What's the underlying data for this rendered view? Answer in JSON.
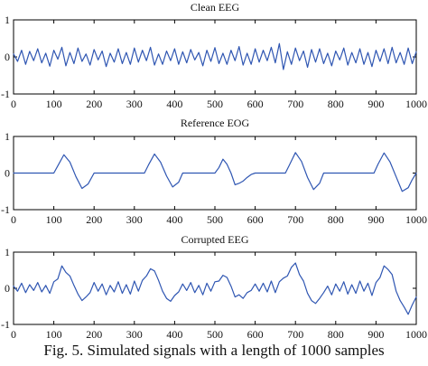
{
  "caption": "Fig. 5. Simulated signals with a length of 1000 samples",
  "colors": {
    "line": "#2f56b2",
    "axis": "#000000",
    "text": "#111111"
  },
  "chart_data": [
    {
      "type": "line",
      "title": "Clean EEG",
      "xlim": [
        0,
        1000
      ],
      "ylim": [
        -1,
        1
      ],
      "xticks": [
        0,
        100,
        200,
        300,
        400,
        500,
        600,
        700,
        800,
        900,
        1000
      ],
      "yticks": [
        -1,
        0,
        1
      ],
      "grid": false,
      "series": [
        {
          "x": [
            0,
            10,
            20,
            30,
            40,
            50,
            60,
            70,
            80,
            90,
            100,
            110,
            120,
            130,
            140,
            150,
            160,
            170,
            180,
            190,
            200,
            210,
            220,
            230,
            240,
            250,
            260,
            270,
            280,
            290,
            300,
            310,
            320,
            330,
            340,
            350,
            360,
            370,
            380,
            390,
            400,
            410,
            420,
            430,
            440,
            450,
            460,
            470,
            480,
            490,
            500,
            510,
            520,
            530,
            540,
            550,
            560,
            570,
            580,
            590,
            600,
            610,
            620,
            630,
            640,
            650,
            660,
            670,
            680,
            690,
            700,
            710,
            720,
            730,
            740,
            750,
            760,
            770,
            780,
            790,
            800,
            810,
            820,
            830,
            840,
            850,
            860,
            870,
            880,
            890,
            900,
            910,
            920,
            930,
            940,
            950,
            960,
            970,
            980,
            990,
            1000
          ],
          "y": [
            0.08,
            -0.12,
            0.18,
            -0.2,
            0.15,
            -0.1,
            0.22,
            -0.16,
            0.1,
            -0.25,
            0.18,
            -0.06,
            0.26,
            -0.24,
            0.12,
            -0.18,
            0.24,
            -0.12,
            0.08,
            -0.22,
            0.2,
            -0.08,
            0.16,
            -0.26,
            0.1,
            -0.14,
            0.22,
            -0.18,
            0.12,
            -0.2,
            0.24,
            -0.14,
            0.18,
            -0.1,
            0.26,
            -0.22,
            0.08,
            -0.2,
            0.16,
            -0.1,
            0.22,
            -0.2,
            0.14,
            -0.16,
            0.2,
            -0.08,
            0.12,
            -0.24,
            0.18,
            -0.12,
            0.25,
            -0.18,
            0.1,
            -0.2,
            0.18,
            -0.1,
            0.28,
            -0.22,
            0.1,
            -0.2,
            0.22,
            -0.14,
            0.18,
            -0.1,
            0.26,
            -0.16,
            0.36,
            -0.34,
            0.14,
            -0.2,
            0.24,
            -0.1,
            0.16,
            -0.28,
            0.2,
            -0.14,
            0.22,
            -0.18,
            0.1,
            -0.24,
            0.16,
            -0.08,
            0.24,
            -0.22,
            0.12,
            -0.16,
            0.22,
            -0.2,
            0.12,
            -0.26,
            0.18,
            -0.12,
            0.22,
            -0.18,
            0.26,
            -0.16,
            0.12,
            -0.2,
            0.24,
            -0.18,
            0.14
          ]
        }
      ]
    },
    {
      "type": "line",
      "title": "Reference EOG",
      "xlim": [
        0,
        1000
      ],
      "ylim": [
        -1,
        1
      ],
      "xticks": [
        0,
        100,
        200,
        300,
        400,
        500,
        600,
        700,
        800,
        900,
        1000
      ],
      "yticks": [
        -1,
        0,
        1
      ],
      "grid": false,
      "series": [
        {
          "x": [
            0,
            100,
            110,
            125,
            140,
            155,
            170,
            185,
            200,
            325,
            335,
            350,
            365,
            380,
            395,
            410,
            420,
            500,
            510,
            520,
            530,
            540,
            550,
            560,
            570,
            580,
            590,
            600,
            675,
            685,
            700,
            715,
            730,
            745,
            760,
            770,
            895,
            905,
            920,
            935,
            950,
            965,
            980,
            990,
            1000
          ],
          "y": [
            0,
            0,
            0.2,
            0.5,
            0.3,
            -0.1,
            -0.42,
            -0.3,
            0,
            0,
            0.22,
            0.52,
            0.3,
            -0.08,
            -0.38,
            -0.25,
            0,
            0,
            0.15,
            0.38,
            0.24,
            0,
            -0.32,
            -0.28,
            -0.22,
            -0.12,
            -0.04,
            0,
            0,
            0.22,
            0.56,
            0.32,
            -0.12,
            -0.45,
            -0.28,
            0,
            0,
            0.24,
            0.55,
            0.3,
            -0.1,
            -0.5,
            -0.4,
            -0.18,
            0
          ]
        }
      ]
    },
    {
      "type": "line",
      "title": "Corrupted EEG",
      "xlim": [
        0,
        1000
      ],
      "ylim": [
        -1,
        1
      ],
      "xticks": [
        0,
        100,
        200,
        300,
        400,
        500,
        600,
        700,
        800,
        900,
        1000
      ],
      "yticks": [
        -1,
        0,
        1
      ],
      "grid": false,
      "series": [
        {
          "x": [
            0,
            10,
            20,
            30,
            40,
            50,
            60,
            70,
            80,
            90,
            100,
            110,
            120,
            130,
            140,
            150,
            160,
            170,
            180,
            190,
            200,
            210,
            220,
            230,
            240,
            250,
            260,
            270,
            280,
            290,
            300,
            310,
            320,
            330,
            340,
            350,
            360,
            370,
            380,
            390,
            400,
            410,
            420,
            430,
            440,
            450,
            460,
            470,
            480,
            490,
            500,
            510,
            520,
            530,
            540,
            550,
            560,
            570,
            580,
            590,
            600,
            610,
            620,
            630,
            640,
            650,
            660,
            670,
            680,
            690,
            700,
            710,
            720,
            730,
            740,
            750,
            760,
            770,
            780,
            790,
            800,
            810,
            820,
            830,
            840,
            850,
            860,
            870,
            880,
            890,
            900,
            910,
            920,
            930,
            940,
            950,
            960,
            970,
            980,
            990,
            1000
          ],
          "y": [
            0.06,
            -0.08,
            0.14,
            -0.12,
            0.1,
            -0.06,
            0.16,
            -0.1,
            0.08,
            -0.14,
            0.18,
            0.26,
            0.62,
            0.44,
            0.34,
            0.08,
            -0.16,
            -0.34,
            -0.24,
            -0.12,
            0.16,
            -0.08,
            0.12,
            -0.18,
            0.08,
            -0.1,
            0.18,
            -0.14,
            0.1,
            -0.16,
            0.2,
            -0.08,
            0.22,
            0.34,
            0.54,
            0.48,
            0.22,
            -0.08,
            -0.28,
            -0.36,
            -0.2,
            -0.1,
            0.12,
            -0.06,
            0.16,
            -0.12,
            0.08,
            -0.18,
            0.14,
            -0.08,
            0.18,
            0.2,
            0.36,
            0.3,
            0.06,
            -0.24,
            -0.18,
            -0.28,
            -0.12,
            -0.06,
            0.12,
            -0.08,
            0.14,
            -0.1,
            0.2,
            -0.12,
            0.18,
            0.28,
            0.34,
            0.58,
            0.7,
            0.38,
            0.2,
            -0.14,
            -0.34,
            -0.42,
            -0.28,
            -0.12,
            0.06,
            -0.18,
            0.12,
            -0.08,
            0.18,
            -0.16,
            0.1,
            -0.14,
            0.2,
            -0.08,
            0.14,
            -0.2,
            0.16,
            0.3,
            0.62,
            0.52,
            0.38,
            -0.08,
            -0.34,
            -0.52,
            -0.72,
            -0.46,
            -0.24
          ]
        }
      ]
    }
  ]
}
